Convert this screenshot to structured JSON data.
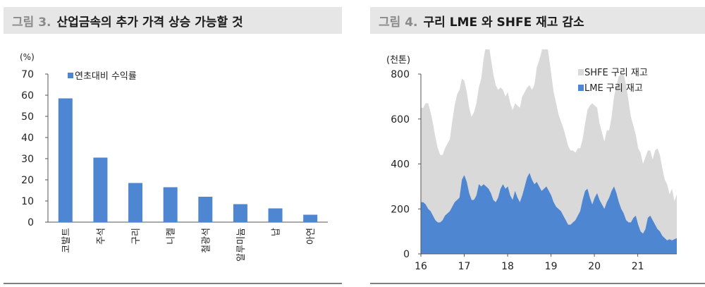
{
  "figure3": {
    "fig_label": "그림 3.",
    "title": "산업금속의 추가 가격 상승 가능할 것",
    "unit": "(%)",
    "legend": "연초대비 수익률",
    "color": "#4f86d1",
    "chart_data": {
      "type": "bar",
      "categories": [
        "코발트",
        "주석",
        "구리",
        "니켈",
        "철광석",
        "알루미늄",
        "납",
        "아연"
      ],
      "series": [
        {
          "name": "연초대비 수익률",
          "values": [
            58.5,
            30.5,
            18.5,
            16.5,
            12,
            8.5,
            6.5,
            3.5
          ]
        }
      ],
      "ylim": [
        0,
        70
      ],
      "yticks": [
        0,
        10,
        20,
        30,
        40,
        50,
        60,
        70
      ],
      "ylabel": "(%)",
      "grid": false,
      "legend_position": "top-left"
    }
  },
  "figure4": {
    "fig_label": "그림 4.",
    "title": "구리 LME 와 SHFE 재고 감소",
    "unit": "(천톤)",
    "chart_data": {
      "type": "area",
      "x_labels": [
        "16",
        "17",
        "18",
        "19",
        "20",
        "21"
      ],
      "ylim": [
        0,
        800
      ],
      "yticks": [
        0,
        200,
        400,
        600,
        800
      ],
      "ylabel": "(천톤)",
      "grid": false,
      "legend_position": "top-right",
      "series": [
        {
          "name": "SHFE 구리 재고",
          "color": "#d9d9d9",
          "stacked": true,
          "values": [
            420,
            420,
            450,
            470,
            440,
            410,
            370,
            330,
            300,
            290,
            300,
            310,
            320,
            380,
            430,
            470,
            480,
            450,
            420,
            400,
            380,
            370,
            390,
            410,
            430,
            480,
            560,
            630,
            650,
            600,
            560,
            520,
            480,
            450,
            420,
            410,
            420,
            410,
            400,
            390,
            410,
            420,
            440,
            420,
            400,
            390,
            400,
            440,
            510,
            560,
            620,
            670,
            650,
            600,
            540,
            490,
            460,
            420,
            400,
            390,
            370,
            350,
            330,
            320,
            300,
            300,
            280,
            270,
            300,
            350,
            410,
            450,
            410,
            380,
            340,
            320,
            300,
            320,
            300,
            330,
            400,
            480,
            560,
            600,
            620,
            600,
            540,
            470,
            410,
            360,
            340,
            350,
            310,
            320,
            300,
            290,
            270,
            330,
            360,
            340,
            300,
            260,
            250,
            200,
            230,
            170,
            195
          ]
        },
        {
          "name": "LME 구리 재고",
          "color": "#4f86d1",
          "values": [
            230,
            230,
            220,
            200,
            190,
            170,
            150,
            140,
            140,
            150,
            170,
            180,
            190,
            210,
            230,
            240,
            250,
            330,
            350,
            320,
            270,
            240,
            240,
            260,
            310,
            300,
            310,
            300,
            290,
            270,
            240,
            230,
            250,
            290,
            310,
            290,
            300,
            260,
            240,
            280,
            250,
            230,
            260,
            300,
            340,
            360,
            330,
            310,
            320,
            300,
            280,
            290,
            300,
            280,
            260,
            230,
            210,
            200,
            190,
            170,
            150,
            130,
            130,
            140,
            150,
            170,
            190,
            240,
            280,
            290,
            250,
            220,
            250,
            270,
            240,
            220,
            200,
            230,
            250,
            280,
            300,
            270,
            230,
            200,
            180,
            150,
            140,
            140,
            160,
            170,
            130,
            100,
            90,
            110,
            160,
            170,
            150,
            130,
            110,
            100,
            80,
            70,
            60,
            65,
            60,
            65,
            70
          ]
        }
      ]
    }
  }
}
